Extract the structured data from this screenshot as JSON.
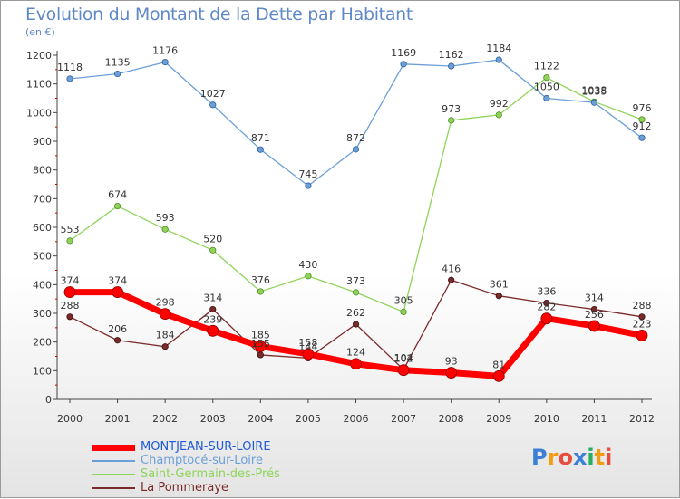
{
  "title": "Evolution du Montant de la Dette par Habitant",
  "subtitle": "(en €)",
  "logo": {
    "text": "Proxiti",
    "colors": [
      "#3b7fd6",
      "#f39c12",
      "#e74c3c",
      "#3b7fd6",
      "#27ae60",
      "#f39c12",
      "#e74c3c"
    ]
  },
  "chart_data": {
    "type": "line",
    "title": "Evolution du Montant de la Dette par Habitant",
    "ylabel": "(en €)",
    "xlabel": "",
    "ylim": [
      0,
      1200
    ],
    "yticks": [
      0,
      100,
      200,
      300,
      400,
      500,
      600,
      700,
      800,
      900,
      1000,
      1100,
      1200
    ],
    "grid": false,
    "legend_position": "bottom-left",
    "categories": [
      "2000",
      "2001",
      "2002",
      "2003",
      "2004",
      "2005",
      "2006",
      "2007",
      "2008",
      "2009",
      "2010",
      "2011",
      "2012"
    ],
    "series": [
      {
        "name": "MONTJEAN-SUR-LOIRE",
        "color": "#ff0000",
        "values": [
          374,
          374,
          298,
          239,
          185,
          158,
          124,
          102,
          93,
          81,
          282,
          256,
          223
        ]
      },
      {
        "name": "Champtocé-sur-Loire",
        "color": "#6c9fd8",
        "values": [
          1118,
          1135,
          1176,
          1027,
          871,
          745,
          872,
          1169,
          1162,
          1184,
          1050,
          1035,
          912
        ]
      },
      {
        "name": "Saint-Germain-des-Prés",
        "color": "#8fd45a",
        "values": [
          553,
          674,
          593,
          520,
          376,
          430,
          373,
          305,
          973,
          992,
          1122,
          1038,
          976
        ]
      },
      {
        "name": "La Pommeraye",
        "color": "#7a2a2a",
        "values": [
          288,
          206,
          184,
          314,
          155,
          144,
          262,
          104,
          416,
          361,
          336,
          314,
          288
        ]
      }
    ]
  }
}
